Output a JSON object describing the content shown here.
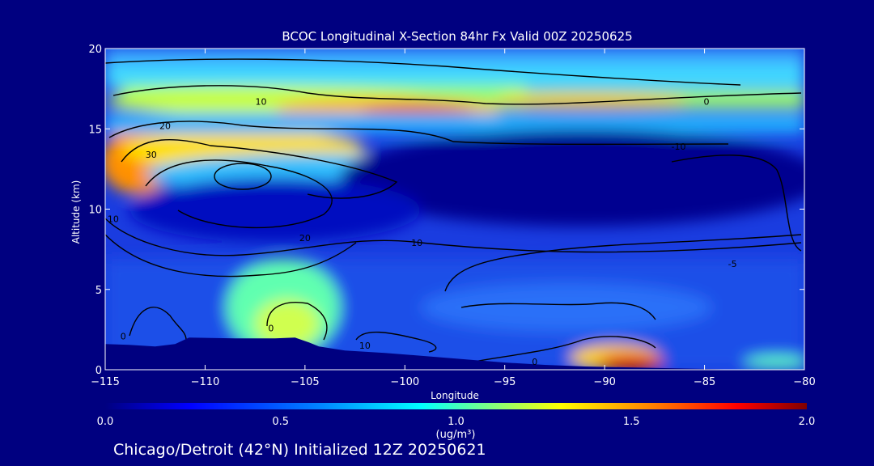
{
  "chart_data": {
    "type": "heatmap",
    "title": "BCOC Longitudinal X-Section 84hr  Fx Valid 00Z 20250625",
    "xlabel": "Longitude",
    "ylabel": "Altitude (km)",
    "xlim": [
      -115,
      -80
    ],
    "ylim": [
      0,
      20
    ],
    "x_ticks": [
      -115,
      -110,
      -105,
      -100,
      -95,
      -90,
      -85,
      -80
    ],
    "x_tick_labels": [
      "−115",
      "−110",
      "−105",
      "−100",
      "−95",
      "−90",
      "−85",
      "−80"
    ],
    "y_ticks": [
      0,
      5,
      10,
      15,
      20
    ],
    "y_tick_labels": [
      "0",
      "5",
      "10",
      "15",
      "20"
    ],
    "colorbar": {
      "min": 0.0,
      "max": 2.0,
      "ticks": [
        "0.0",
        "0.5",
        "1.0",
        "1.5",
        "2.0"
      ],
      "unit_label": "(ug/m³)",
      "colors": [
        "#000080",
        "#0000ff",
        "#0080ff",
        "#00ffff",
        "#80ff80",
        "#ffff00",
        "#ff8000",
        "#ff0000",
        "#800000"
      ]
    },
    "contour_labels": [
      {
        "text": "10",
        "x": -107.2,
        "y": 16.7
      },
      {
        "text": "20",
        "x": -112.0,
        "y": 15.2
      },
      {
        "text": "30",
        "x": -112.7,
        "y": 13.4
      },
      {
        "text": "10",
        "x": -114.6,
        "y": 9.4
      },
      {
        "text": "20",
        "x": -105.0,
        "y": 8.2
      },
      {
        "text": "10",
        "x": -99.4,
        "y": 7.9
      },
      {
        "text": "-10",
        "x": -86.3,
        "y": 13.9
      },
      {
        "text": "0",
        "x": -84.9,
        "y": 16.7
      },
      {
        "text": "-5",
        "x": -83.6,
        "y": 6.6
      },
      {
        "text": "0",
        "x": -114.1,
        "y": 2.1
      },
      {
        "text": "0",
        "x": -106.7,
        "y": 2.6
      },
      {
        "text": "10",
        "x": -102.0,
        "y": 1.5
      },
      {
        "text": "0",
        "x": -93.5,
        "y": 0.5
      }
    ],
    "terrain_km": [
      [
        -115,
        1.6
      ],
      [
        -113.8,
        1.55
      ],
      [
        -112.5,
        1.45
      ],
      [
        -111.5,
        1.6
      ],
      [
        -110.8,
        2.0
      ],
      [
        -108.5,
        1.95
      ],
      [
        -106.5,
        1.95
      ],
      [
        -105.5,
        2.0
      ],
      [
        -104.8,
        1.7
      ],
      [
        -104.3,
        1.45
      ],
      [
        -103.0,
        1.2
      ],
      [
        -101.0,
        1.05
      ],
      [
        -99.0,
        0.85
      ],
      [
        -97.0,
        0.65
      ],
      [
        -95.0,
        0.45
      ],
      [
        -93.0,
        0.3
      ],
      [
        -91.0,
        0.2
      ],
      [
        -89.0,
        0.15
      ],
      [
        -87.0,
        0.1
      ],
      [
        -85.0,
        0.05
      ],
      [
        -83.0,
        0.0
      ],
      [
        -81.0,
        0.0
      ],
      [
        -80.0,
        0.0
      ]
    ]
  },
  "footer": {
    "caption": "Chicago/Detroit (42°N) Initialized 12Z 20250621"
  }
}
